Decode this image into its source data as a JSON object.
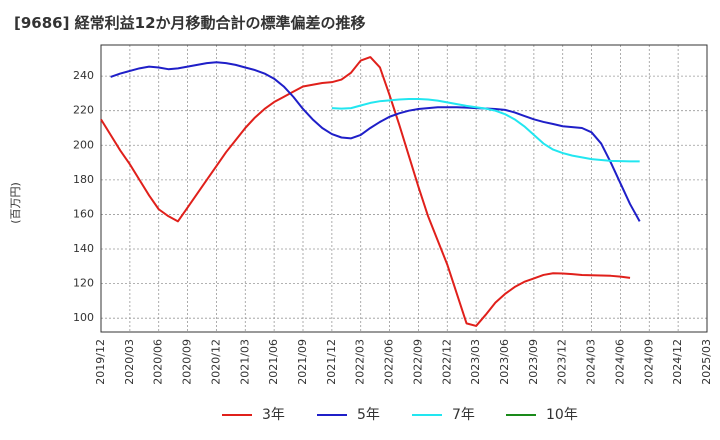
{
  "chart_data": {
    "type": "line",
    "title": "[9686]  経常利益12か月移動合計の標準偏差の推移",
    "ylabel": "(百万円)",
    "xlabel": "",
    "ylim": [
      92,
      258
    ],
    "yticks": [
      100,
      120,
      140,
      160,
      180,
      200,
      220,
      240
    ],
    "xlim": [
      "2019-12",
      "2025-03"
    ],
    "xticks": [
      "2019/12",
      "2020/03",
      "2020/06",
      "2020/09",
      "2020/12",
      "2021/03",
      "2021/06",
      "2021/09",
      "2021/12",
      "2022/03",
      "2022/06",
      "2022/09",
      "2022/12",
      "2023/03",
      "2023/06",
      "2023/09",
      "2023/12",
      "2024/03",
      "2024/06",
      "2024/09",
      "2024/12",
      "2025/03"
    ],
    "grid": true,
    "legend_position": "bottom",
    "series": [
      {
        "name": "3年",
        "color": "#e0201b",
        "points": [
          [
            "2019-12",
            215
          ],
          [
            "2020-01",
            206
          ],
          [
            "2020-02",
            197
          ],
          [
            "2020-03",
            189
          ],
          [
            "2020-04",
            180
          ],
          [
            "2020-05",
            171
          ],
          [
            "2020-06",
            163
          ],
          [
            "2020-07",
            159
          ],
          [
            "2020-08",
            156
          ],
          [
            "2020-09",
            164
          ],
          [
            "2020-10",
            172
          ],
          [
            "2020-11",
            180
          ],
          [
            "2020-12",
            188
          ],
          [
            "2021-01",
            196
          ],
          [
            "2021-02",
            203
          ],
          [
            "2021-03",
            210
          ],
          [
            "2021-04",
            216
          ],
          [
            "2021-05",
            221
          ],
          [
            "2021-06",
            225
          ],
          [
            "2021-07",
            228
          ],
          [
            "2021-08",
            231
          ],
          [
            "2021-09",
            234
          ],
          [
            "2021-10",
            235
          ],
          [
            "2021-11",
            236
          ],
          [
            "2021-12",
            236.5
          ],
          [
            "2022-01",
            238
          ],
          [
            "2022-02",
            242
          ],
          [
            "2022-03",
            249
          ],
          [
            "2022-04",
            251
          ],
          [
            "2022-05",
            245
          ],
          [
            "2022-06",
            229
          ],
          [
            "2022-07",
            212
          ],
          [
            "2022-08",
            194
          ],
          [
            "2022-09",
            176
          ],
          [
            "2022-10",
            159
          ],
          [
            "2022-11",
            145
          ],
          [
            "2022-12",
            131
          ],
          [
            "2023-01",
            114
          ],
          [
            "2023-02",
            97
          ],
          [
            "2023-03",
            95.5
          ],
          [
            "2023-04",
            102
          ],
          [
            "2023-05",
            109
          ],
          [
            "2023-06",
            114
          ],
          [
            "2023-07",
            118
          ],
          [
            "2023-08",
            121
          ],
          [
            "2023-09",
            123
          ],
          [
            "2023-10",
            125
          ],
          [
            "2023-11",
            126
          ],
          [
            "2023-12",
            125.8
          ],
          [
            "2024-01",
            125.5
          ],
          [
            "2024-02",
            125
          ],
          [
            "2024-03",
            124.8
          ],
          [
            "2024-04",
            124.7
          ],
          [
            "2024-05",
            124.5
          ],
          [
            "2024-06",
            124
          ],
          [
            "2024-07",
            123.3
          ]
        ]
      },
      {
        "name": "5年",
        "color": "#1f1fc8",
        "points": [
          [
            "2020-01",
            239.5
          ],
          [
            "2020-02",
            241.5
          ],
          [
            "2020-03",
            243
          ],
          [
            "2020-04",
            244.5
          ],
          [
            "2020-05",
            245.5
          ],
          [
            "2020-06",
            245
          ],
          [
            "2020-07",
            244
          ],
          [
            "2020-08",
            244.5
          ],
          [
            "2020-09",
            245.5
          ],
          [
            "2020-10",
            246.5
          ],
          [
            "2020-11",
            247.5
          ],
          [
            "2020-12",
            248
          ],
          [
            "2021-01",
            247.5
          ],
          [
            "2021-02",
            246.5
          ],
          [
            "2021-03",
            245
          ],
          [
            "2021-04",
            243.5
          ],
          [
            "2021-05",
            241.5
          ],
          [
            "2021-06",
            238.5
          ],
          [
            "2021-07",
            234
          ],
          [
            "2021-08",
            228
          ],
          [
            "2021-09",
            221
          ],
          [
            "2021-10",
            215
          ],
          [
            "2021-11",
            210
          ],
          [
            "2021-12",
            206.5
          ],
          [
            "2022-01",
            204.5
          ],
          [
            "2022-02",
            204
          ],
          [
            "2022-03",
            206
          ],
          [
            "2022-04",
            210
          ],
          [
            "2022-05",
            213.5
          ],
          [
            "2022-06",
            216.5
          ],
          [
            "2022-07",
            218.5
          ],
          [
            "2022-08",
            220
          ],
          [
            "2022-09",
            221
          ],
          [
            "2022-10",
            221.5
          ],
          [
            "2022-11",
            222
          ],
          [
            "2022-12",
            222
          ],
          [
            "2023-01",
            222
          ],
          [
            "2023-02",
            221.8
          ],
          [
            "2023-03",
            221.5
          ],
          [
            "2023-04",
            221.3
          ],
          [
            "2023-05",
            221
          ],
          [
            "2023-06",
            220.5
          ],
          [
            "2023-07",
            219
          ],
          [
            "2023-08",
            217
          ],
          [
            "2023-09",
            215
          ],
          [
            "2023-10",
            213.5
          ],
          [
            "2023-11",
            212.3
          ],
          [
            "2023-12",
            211
          ],
          [
            "2024-01",
            210.5
          ],
          [
            "2024-02",
            210
          ],
          [
            "2024-03",
            207.5
          ],
          [
            "2024-04",
            201
          ],
          [
            "2024-05",
            190
          ],
          [
            "2024-06",
            178
          ],
          [
            "2024-07",
            166
          ],
          [
            "2024-08",
            156
          ]
        ]
      },
      {
        "name": "7年",
        "color": "#22e6f0",
        "points": [
          [
            "2021-12",
            221.5
          ],
          [
            "2022-01",
            221.2
          ],
          [
            "2022-02",
            221.5
          ],
          [
            "2022-03",
            223
          ],
          [
            "2022-04",
            224.5
          ],
          [
            "2022-05",
            225.5
          ],
          [
            "2022-06",
            226
          ],
          [
            "2022-07",
            226.5
          ],
          [
            "2022-08",
            226.8
          ],
          [
            "2022-09",
            226.8
          ],
          [
            "2022-10",
            226.5
          ],
          [
            "2022-11",
            225.8
          ],
          [
            "2022-12",
            224.8
          ],
          [
            "2023-01",
            223.8
          ],
          [
            "2023-02",
            222.8
          ],
          [
            "2023-03",
            222
          ],
          [
            "2023-04",
            221.2
          ],
          [
            "2023-05",
            220
          ],
          [
            "2023-06",
            218
          ],
          [
            "2023-07",
            215
          ],
          [
            "2023-08",
            211
          ],
          [
            "2023-09",
            206
          ],
          [
            "2023-10",
            201
          ],
          [
            "2023-11",
            197.5
          ],
          [
            "2023-12",
            195.5
          ],
          [
            "2024-01",
            194
          ],
          [
            "2024-02",
            193
          ],
          [
            "2024-03",
            192
          ],
          [
            "2024-04",
            191.5
          ],
          [
            "2024-05",
            191
          ],
          [
            "2024-06",
            190.8
          ],
          [
            "2024-07",
            190.7
          ],
          [
            "2024-08",
            190.7
          ]
        ]
      },
      {
        "name": "10年",
        "color": "#1a8a1a",
        "points": []
      }
    ]
  }
}
